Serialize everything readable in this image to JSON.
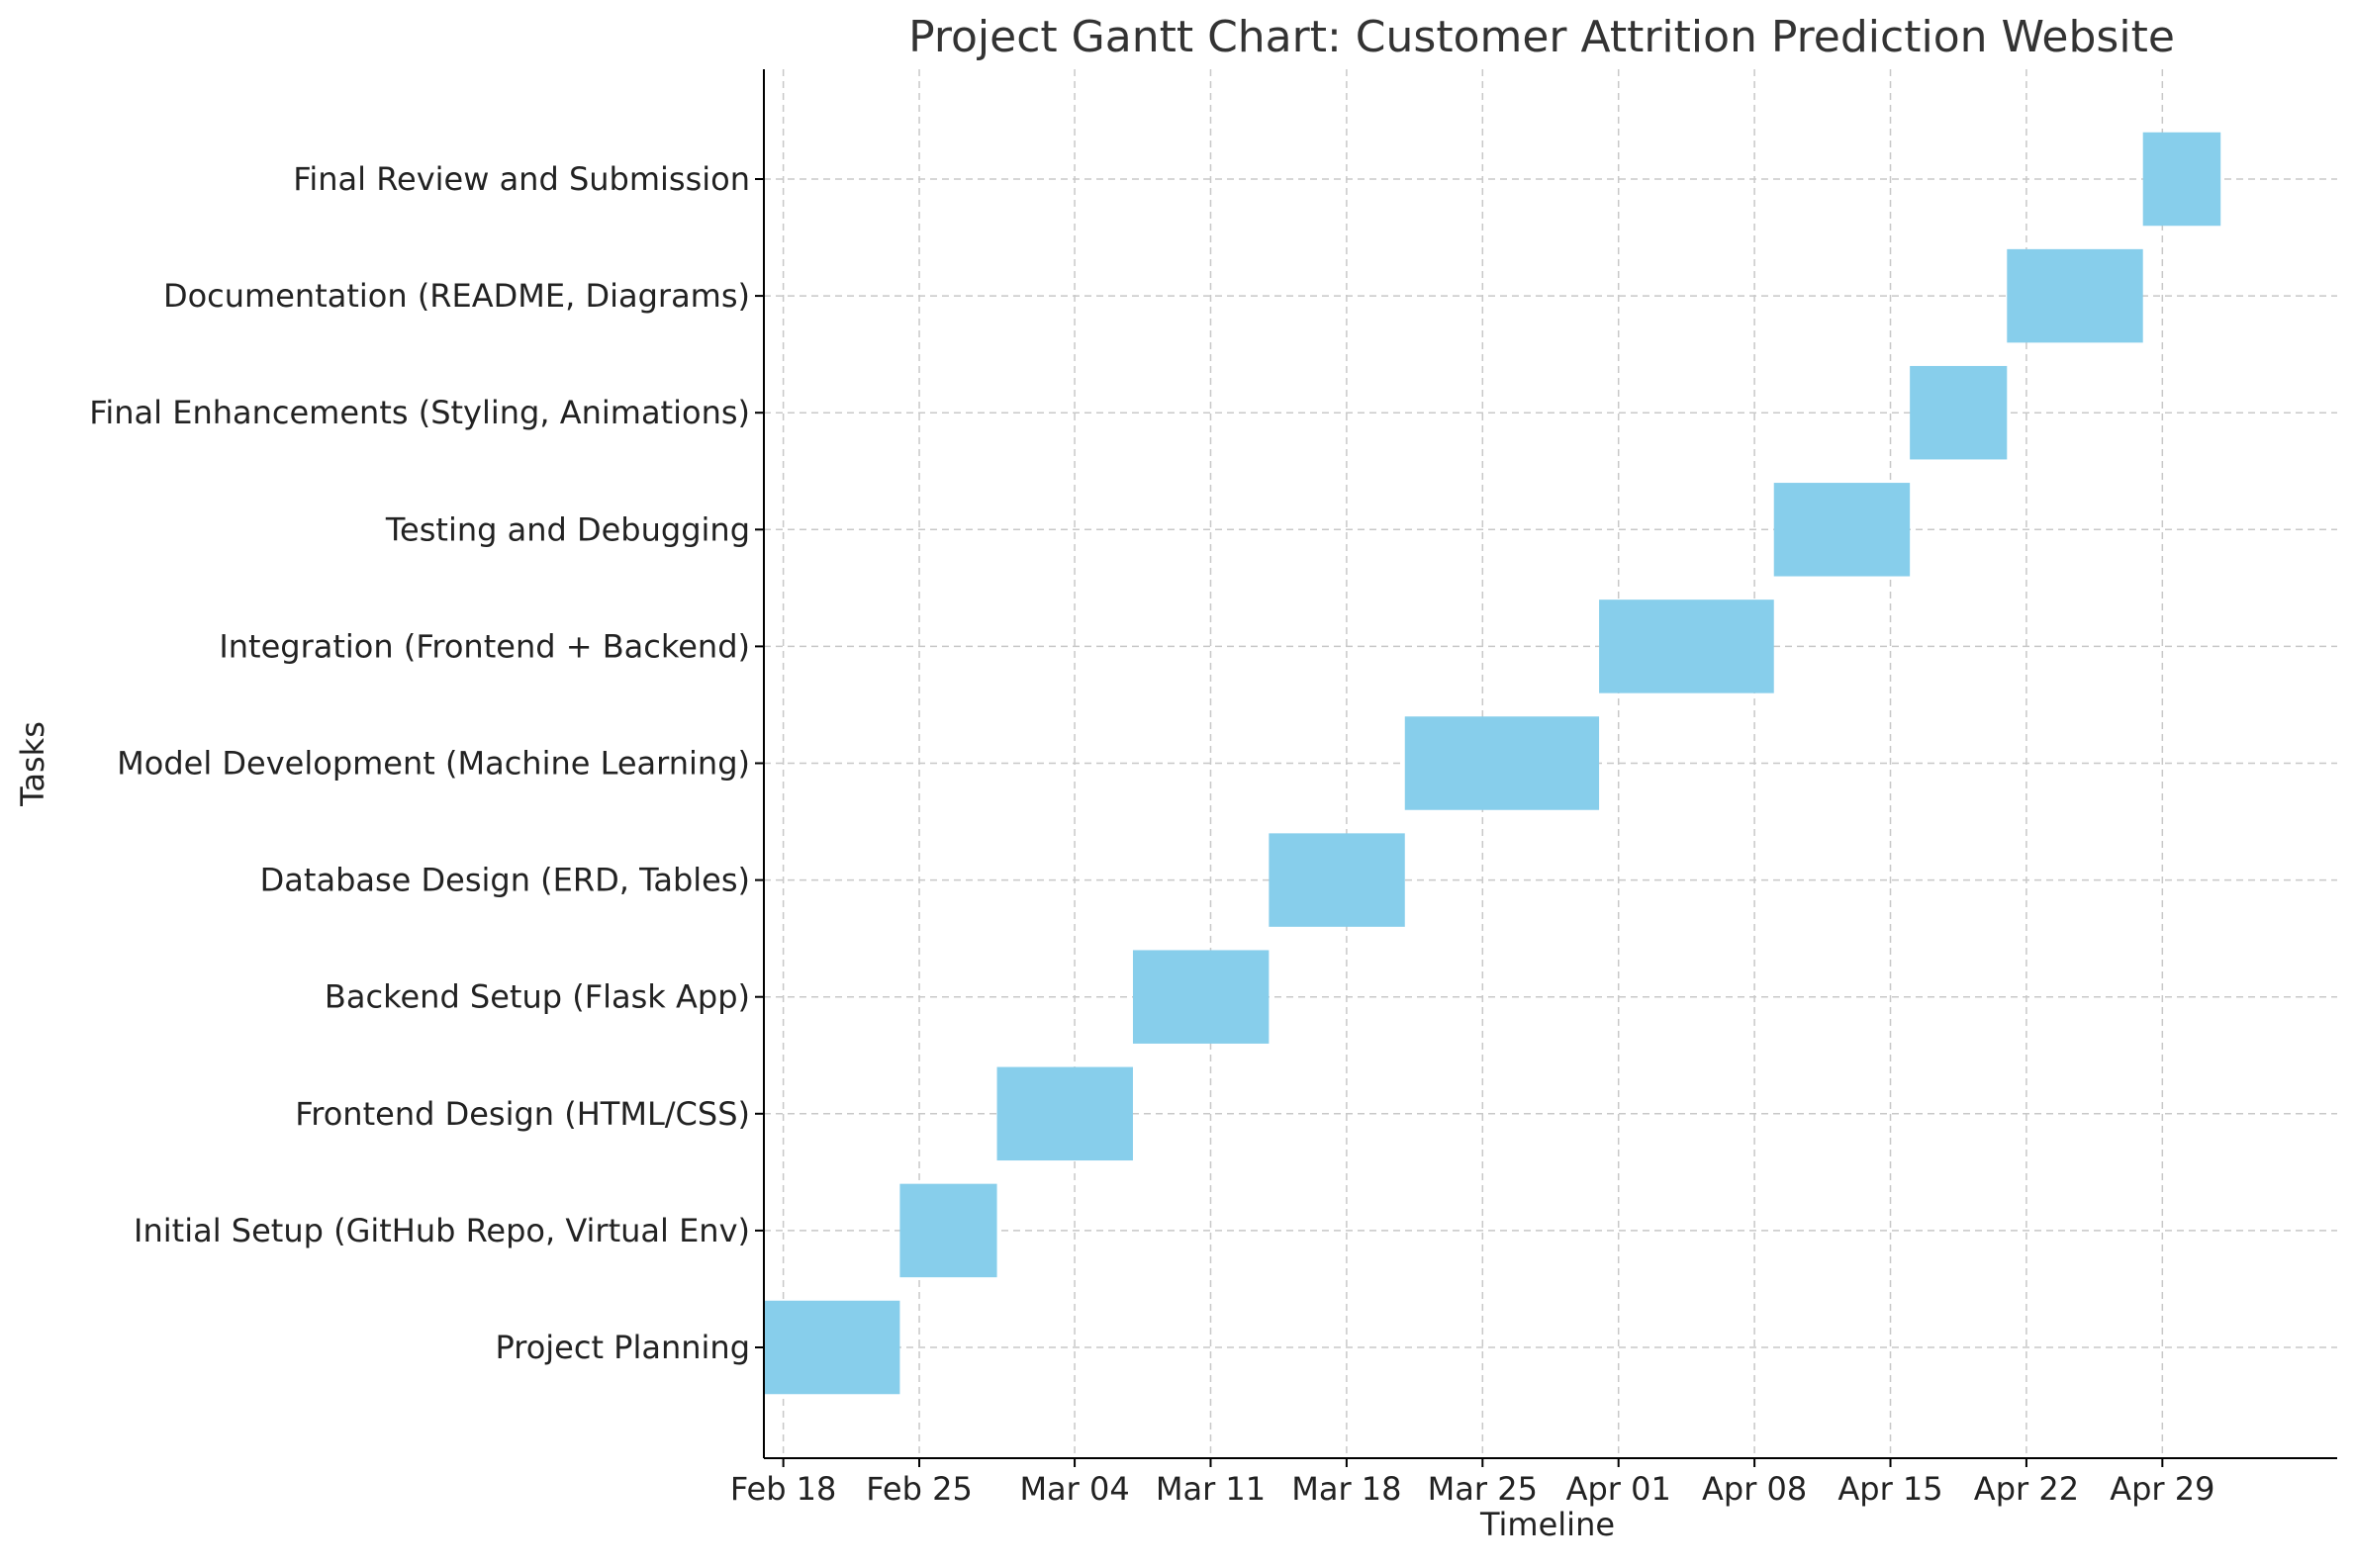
{
  "chart_data": {
    "type": "bar",
    "orientation": "horizontal",
    "title": "Project Gantt Chart: Customer Attrition Prediction Website",
    "xlabel": "Timeline",
    "ylabel": "Tasks",
    "xlim": [
      "2024-02-17",
      "2024-05-08"
    ],
    "x_ticks": [
      {
        "date": "2024-02-18",
        "label": "Feb 18"
      },
      {
        "date": "2024-02-25",
        "label": "Feb 25"
      },
      {
        "date": "2024-03-04",
        "label": "Mar 04"
      },
      {
        "date": "2024-03-11",
        "label": "Mar 11"
      },
      {
        "date": "2024-03-18",
        "label": "Mar 18"
      },
      {
        "date": "2024-03-25",
        "label": "Mar 25"
      },
      {
        "date": "2024-04-01",
        "label": "Apr 01"
      },
      {
        "date": "2024-04-08",
        "label": "Apr 08"
      },
      {
        "date": "2024-04-15",
        "label": "Apr 15"
      },
      {
        "date": "2024-04-22",
        "label": "Apr 22"
      },
      {
        "date": "2024-04-29",
        "label": "Apr 29"
      }
    ],
    "grid": true,
    "bar_color": "#87CEEB",
    "tasks": [
      {
        "name": "Project Planning",
        "start": "2024-02-17",
        "end": "2024-02-23"
      },
      {
        "name": "Initial Setup (GitHub Repo, Virtual Env)",
        "start": "2024-02-24",
        "end": "2024-02-28"
      },
      {
        "name": "Frontend Design (HTML/CSS)",
        "start": "2024-02-29",
        "end": "2024-03-06"
      },
      {
        "name": "Backend Setup (Flask App)",
        "start": "2024-03-07",
        "end": "2024-03-13"
      },
      {
        "name": "Database Design (ERD, Tables)",
        "start": "2024-03-14",
        "end": "2024-03-20"
      },
      {
        "name": "Model Development (Machine Learning)",
        "start": "2024-03-21",
        "end": "2024-03-30"
      },
      {
        "name": "Integration (Frontend + Backend)",
        "start": "2024-03-31",
        "end": "2024-04-08"
      },
      {
        "name": "Testing and Debugging",
        "start": "2024-04-09",
        "end": "2024-04-15"
      },
      {
        "name": "Final Enhancements (Styling, Animations)",
        "start": "2024-04-16",
        "end": "2024-04-20"
      },
      {
        "name": "Documentation (README, Diagrams)",
        "start": "2024-04-21",
        "end": "2024-04-27"
      },
      {
        "name": "Final Review and Submission",
        "start": "2024-04-28",
        "end": "2024-05-01"
      }
    ]
  }
}
